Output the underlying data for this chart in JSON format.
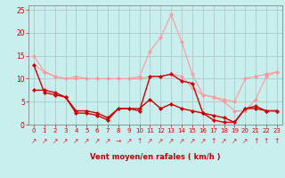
{
  "x": [
    0,
    1,
    2,
    3,
    4,
    5,
    6,
    7,
    8,
    9,
    10,
    11,
    12,
    13,
    14,
    15,
    16,
    17,
    18,
    19,
    20,
    21,
    22,
    23
  ],
  "line_dark1": [
    7.5,
    7.5,
    7,
    6,
    3,
    3,
    2.5,
    1.5,
    3.5,
    3.5,
    3.5,
    5.5,
    3.5,
    4.5,
    3.5,
    3,
    2.5,
    2,
    1.5,
    0.5,
    3.5,
    4,
    3,
    3
  ],
  "line_dark2": [
    13,
    7,
    6.5,
    6,
    2.5,
    2.5,
    2,
    1,
    3.5,
    3.5,
    3,
    10.5,
    10.5,
    11,
    9.5,
    9,
    2.5,
    1,
    0.5,
    0.5,
    3.5,
    3.5,
    3,
    3
  ],
  "line_light1": [
    13,
    11.5,
    10.5,
    10,
    10,
    10,
    10,
    10,
    10,
    10,
    10,
    10.5,
    10.5,
    11,
    10.5,
    8,
    6.5,
    6,
    5.5,
    5,
    10,
    10.5,
    11,
    11.5
  ],
  "line_light2": [
    15,
    11.5,
    10.5,
    10,
    10.5,
    10,
    10,
    10,
    10,
    10,
    10.5,
    16,
    19,
    24,
    18,
    11,
    6.5,
    6,
    5,
    3,
    3,
    5.5,
    10.5,
    11.5
  ],
  "bg_color": "#c8eeed",
  "grid_color": "#b0c8c8",
  "line_dark_color": "#cc0000",
  "line_light_color": "#ff9999",
  "xlabel": "Vent moyen/en rafales ( km/h )",
  "ylim": [
    0,
    26
  ],
  "xlim": [
    -0.5,
    23.5
  ],
  "yticks": [
    0,
    5,
    10,
    15,
    20,
    25
  ],
  "xticks": [
    0,
    1,
    2,
    3,
    4,
    5,
    6,
    7,
    8,
    9,
    10,
    11,
    12,
    13,
    14,
    15,
    16,
    17,
    18,
    19,
    20,
    21,
    22,
    23
  ],
  "arrow_chars": [
    "↗",
    "↗",
    "↗",
    "↗",
    "↗",
    "↗",
    "↗",
    "↗",
    "→",
    "↗",
    "↑",
    "↗",
    "↗",
    "↗",
    "↗",
    "↗",
    "↗",
    "↑",
    "↗",
    "↗",
    "↗",
    "↑",
    "↑",
    "↑"
  ],
  "arrow_color": "#dd2222",
  "markersize": 2.5,
  "tick_fontsize": 5,
  "xlabel_fontsize": 6,
  "ytick_fontsize": 5.5
}
